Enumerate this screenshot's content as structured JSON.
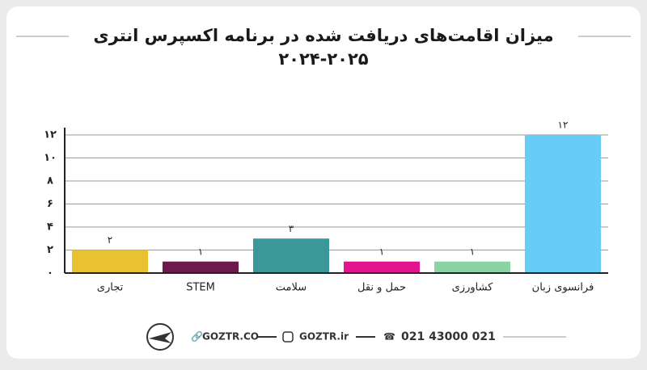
{
  "chart_data": {
    "type": "bar",
    "title": "میزان اقامت‌های دریافت شده در برنامه اکسپرس انتری",
    "subtitle": "۲۰۲۴-۲۰۲۵",
    "categories": [
      "تجاری",
      "STEM",
      "سلامت",
      "حمل و نقل",
      "کشاورزی",
      "فرانسوی زبان"
    ],
    "values": [
      2,
      1,
      3,
      1,
      1,
      12
    ],
    "value_labels": [
      "۲",
      "۱",
      "۳",
      "۱",
      "۱",
      "۱۲"
    ],
    "colors": [
      "#e9c232",
      "#6c1a4c",
      "#3b9898",
      "#e3148d",
      "#8ad3a3",
      "#67cdf6"
    ],
    "ylim": [
      0,
      12
    ],
    "yticks": [
      {
        "value": 0,
        "label": "۰"
      },
      {
        "value": 2,
        "label": "۲"
      },
      {
        "value": 4,
        "label": "۴"
      },
      {
        "value": 6,
        "label": "۶"
      },
      {
        "value": 8,
        "label": "۸"
      },
      {
        "value": 10,
        "label": "۱۰"
      },
      {
        "value": 12,
        "label": "۱۲"
      }
    ],
    "grid": true
  },
  "footer": {
    "website": "GOZTR.CO",
    "instagram": "GOZTR.ir",
    "phone": "021 43000 021"
  }
}
